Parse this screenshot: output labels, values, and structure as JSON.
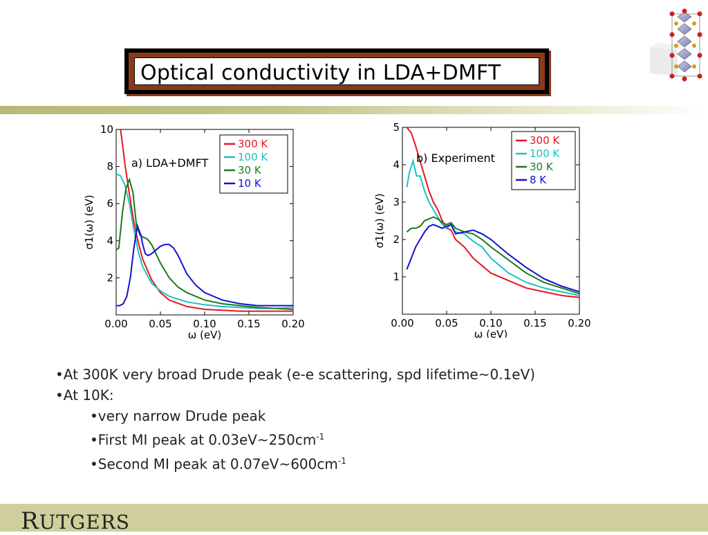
{
  "slide": {
    "title": "Optical conductivity in LDA+DMFT",
    "logo_first": "R",
    "logo_rest": "UTGERS",
    "bullets": [
      {
        "level": 1,
        "text": "•At 300K very broad Drude peak (e-e scattering, spd lifetime~0.1eV)"
      },
      {
        "level": 1,
        "text": "•At 10K:"
      },
      {
        "level": 2,
        "text": "•very narrow Drude peak"
      },
      {
        "level": 2,
        "text": "•First MI peak at 0.03eV~250cm",
        "sup": "-1"
      },
      {
        "level": 2,
        "text": "•Second MI peak at 0.07eV~600cm",
        "sup": "-1"
      }
    ],
    "colors": {
      "red": "#e8141e",
      "cyan": "#1cc0c0",
      "green": "#1a7a1a",
      "blue": "#1010d0",
      "band": "#cfcf9d",
      "title_border": "#8a3a1a"
    }
  },
  "chart_data": [
    {
      "type": "line",
      "annotation": "a) LDA+DMFT",
      "xlabel": "ω (eV)",
      "ylabel": "σ1(ω) (eV)",
      "xlim": [
        0.0,
        0.2
      ],
      "ylim": [
        0,
        10
      ],
      "xticks": [
        "0.00",
        "0.05",
        "0.10",
        "0.15",
        "0.20"
      ],
      "yticks": [
        "2",
        "4",
        "6",
        "8",
        "10"
      ],
      "legend_position": "top-right",
      "series": [
        {
          "name": "300 K",
          "color": "#e8141e",
          "x": [
            0.005,
            0.01,
            0.015,
            0.02,
            0.025,
            0.03,
            0.04,
            0.05,
            0.06,
            0.08,
            0.1,
            0.12,
            0.14,
            0.16,
            0.18,
            0.2
          ],
          "y": [
            10.0,
            8.1,
            6.5,
            5.0,
            3.9,
            3.0,
            1.9,
            1.2,
            0.8,
            0.45,
            0.3,
            0.25,
            0.2,
            0.2,
            0.2,
            0.2
          ]
        },
        {
          "name": "100 K",
          "color": "#1cc0c0",
          "x": [
            0.0,
            0.005,
            0.01,
            0.015,
            0.02,
            0.025,
            0.03,
            0.04,
            0.05,
            0.06,
            0.08,
            0.1,
            0.12,
            0.14,
            0.16,
            0.18,
            0.2
          ],
          "y": [
            7.6,
            7.5,
            7.0,
            6.0,
            4.6,
            3.4,
            2.6,
            1.7,
            1.3,
            1.0,
            0.7,
            0.55,
            0.45,
            0.4,
            0.35,
            0.35,
            0.4
          ]
        },
        {
          "name": "30 K",
          "color": "#1a7a1a",
          "x": [
            0.0,
            0.003,
            0.007,
            0.011,
            0.015,
            0.019,
            0.023,
            0.027,
            0.03,
            0.035,
            0.04,
            0.05,
            0.06,
            0.07,
            0.08,
            0.1,
            0.12,
            0.14,
            0.16,
            0.18,
            0.2
          ],
          "y": [
            3.5,
            3.6,
            5.5,
            6.8,
            7.3,
            6.6,
            4.8,
            4.3,
            4.2,
            4.1,
            3.8,
            2.8,
            2.0,
            1.5,
            1.2,
            0.8,
            0.6,
            0.5,
            0.4,
            0.35,
            0.3
          ]
        },
        {
          "name": "10 K",
          "color": "#1010d0",
          "x": [
            0.0,
            0.004,
            0.008,
            0.012,
            0.016,
            0.02,
            0.024,
            0.028,
            0.03,
            0.033,
            0.036,
            0.04,
            0.045,
            0.05,
            0.055,
            0.06,
            0.065,
            0.07,
            0.075,
            0.08,
            0.09,
            0.1,
            0.12,
            0.14,
            0.16,
            0.18,
            0.2
          ],
          "y": [
            0.5,
            0.5,
            0.6,
            1.0,
            2.0,
            3.6,
            4.8,
            4.3,
            3.8,
            3.3,
            3.2,
            3.3,
            3.5,
            3.7,
            3.8,
            3.8,
            3.6,
            3.2,
            2.7,
            2.2,
            1.6,
            1.2,
            0.8,
            0.6,
            0.5,
            0.5,
            0.5
          ]
        }
      ]
    },
    {
      "type": "line",
      "annotation": "b) Experiment",
      "xlabel": "ω (eV)",
      "ylabel": "σ1(ω) (eV)",
      "xlim": [
        0.0,
        0.2
      ],
      "ylim": [
        0,
        5
      ],
      "xticks": [
        "0.00",
        "0.05",
        "0.10",
        "0.15",
        "0.20"
      ],
      "yticks": [
        "1",
        "2",
        "3",
        "4",
        "5"
      ],
      "legend_position": "top-right",
      "series": [
        {
          "name": "300 K",
          "color": "#e8141e",
          "x": [
            0.005,
            0.01,
            0.015,
            0.02,
            0.025,
            0.03,
            0.035,
            0.04,
            0.045,
            0.05,
            0.055,
            0.06,
            0.07,
            0.08,
            0.09,
            0.1,
            0.12,
            0.14,
            0.16,
            0.18,
            0.2
          ],
          "y": [
            5.0,
            4.85,
            4.5,
            4.1,
            3.7,
            3.3,
            3.0,
            2.8,
            2.5,
            2.3,
            2.25,
            2.0,
            1.8,
            1.5,
            1.3,
            1.1,
            0.9,
            0.7,
            0.6,
            0.5,
            0.45
          ]
        },
        {
          "name": "100 K",
          "color": "#1cc0c0",
          "x": [
            0.005,
            0.008,
            0.012,
            0.016,
            0.02,
            0.025,
            0.03,
            0.035,
            0.04,
            0.045,
            0.05,
            0.055,
            0.06,
            0.07,
            0.08,
            0.09,
            0.1,
            0.12,
            0.14,
            0.16,
            0.18,
            0.2
          ],
          "y": [
            3.4,
            3.8,
            4.1,
            3.7,
            3.7,
            3.3,
            3.0,
            2.8,
            2.6,
            2.4,
            2.3,
            2.4,
            2.2,
            2.15,
            1.95,
            1.8,
            1.5,
            1.1,
            0.85,
            0.7,
            0.6,
            0.5
          ]
        },
        {
          "name": "30 K",
          "color": "#1a7a1a",
          "x": [
            0.005,
            0.01,
            0.015,
            0.02,
            0.025,
            0.03,
            0.035,
            0.04,
            0.045,
            0.05,
            0.055,
            0.06,
            0.07,
            0.08,
            0.09,
            0.1,
            0.12,
            0.14,
            0.16,
            0.18,
            0.2
          ],
          "y": [
            2.2,
            2.3,
            2.3,
            2.35,
            2.5,
            2.55,
            2.6,
            2.55,
            2.45,
            2.4,
            2.45,
            2.3,
            2.2,
            2.15,
            2.0,
            1.8,
            1.45,
            1.1,
            0.85,
            0.7,
            0.55
          ]
        },
        {
          "name": "8 K",
          "color": "#1010d0",
          "x": [
            0.005,
            0.01,
            0.015,
            0.02,
            0.025,
            0.03,
            0.035,
            0.04,
            0.045,
            0.05,
            0.055,
            0.06,
            0.07,
            0.08,
            0.09,
            0.1,
            0.12,
            0.14,
            0.16,
            0.18,
            0.2
          ],
          "y": [
            1.2,
            1.5,
            1.8,
            2.0,
            2.2,
            2.35,
            2.4,
            2.35,
            2.3,
            2.35,
            2.4,
            2.15,
            2.2,
            2.25,
            2.15,
            2.0,
            1.6,
            1.25,
            0.95,
            0.75,
            0.6
          ]
        }
      ]
    }
  ]
}
